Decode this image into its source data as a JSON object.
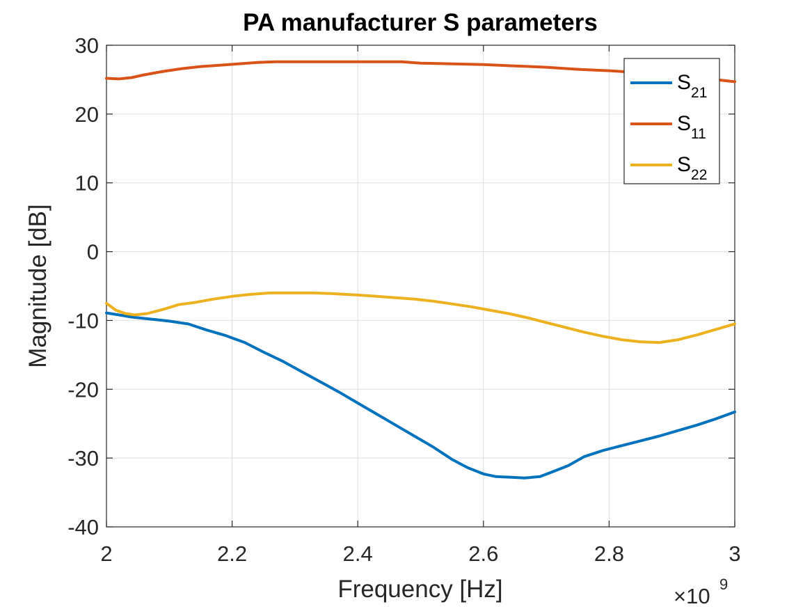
{
  "chart_data": {
    "type": "line",
    "title": "PA manufacturer S parameters",
    "xlabel": "Frequency [Hz]",
    "ylabel": "Magnitude [dB]",
    "xlim": [
      2000000000.0,
      3000000000.0
    ],
    "ylim": [
      -40,
      30
    ],
    "x_ticks": [
      2000000000.0,
      2200000000.0,
      2400000000.0,
      2600000000.0,
      2800000000.0,
      3000000000.0
    ],
    "x_tick_labels": [
      "2",
      "2.2",
      "2.4",
      "2.6",
      "2.8",
      "3"
    ],
    "y_ticks": [
      30,
      20,
      10,
      0,
      -10,
      -20,
      -30,
      -40
    ],
    "y_tick_labels": [
      "30",
      "20",
      "10",
      "0",
      "-10",
      "-20",
      "-30",
      "-40"
    ],
    "x_exponent": {
      "base": "×10",
      "power": "9"
    },
    "grid": true,
    "legend_position": "top-right",
    "series": [
      {
        "name": "S21",
        "legend_main": "S",
        "legend_sub": "21",
        "color": "#0072BD",
        "points": [
          [
            2000000000.0,
            -8.9
          ],
          [
            2020000000.0,
            -9.2
          ],
          [
            2040000000.0,
            -9.5
          ],
          [
            2060000000.0,
            -9.7
          ],
          [
            2080000000.0,
            -9.9
          ],
          [
            2100000000.0,
            -10.1
          ],
          [
            2130000000.0,
            -10.5
          ],
          [
            2160000000.0,
            -11.4
          ],
          [
            2190000000.0,
            -12.2
          ],
          [
            2220000000.0,
            -13.2
          ],
          [
            2250000000.0,
            -14.6
          ],
          [
            2280000000.0,
            -15.9
          ],
          [
            2310000000.0,
            -17.4
          ],
          [
            2340000000.0,
            -18.9
          ],
          [
            2370000000.0,
            -20.4
          ],
          [
            2400000000.0,
            -22.0
          ],
          [
            2430000000.0,
            -23.6
          ],
          [
            2460000000.0,
            -25.2
          ],
          [
            2490000000.0,
            -26.8
          ],
          [
            2520000000.0,
            -28.4
          ],
          [
            2550000000.0,
            -30.2
          ],
          [
            2575000000.0,
            -31.4
          ],
          [
            2600000000.0,
            -32.3
          ],
          [
            2620000000.0,
            -32.7
          ],
          [
            2645000000.0,
            -32.8
          ],
          [
            2665000000.0,
            -32.9
          ],
          [
            2690000000.0,
            -32.7
          ],
          [
            2710000000.0,
            -32.0
          ],
          [
            2735000000.0,
            -31.1
          ],
          [
            2760000000.0,
            -29.8
          ],
          [
            2790000000.0,
            -28.9
          ],
          [
            2820000000.0,
            -28.2
          ],
          [
            2850000000.0,
            -27.5
          ],
          [
            2880000000.0,
            -26.8
          ],
          [
            2910000000.0,
            -26.0
          ],
          [
            2940000000.0,
            -25.2
          ],
          [
            2970000000.0,
            -24.3
          ],
          [
            3000000000.0,
            -23.3
          ]
        ]
      },
      {
        "name": "S11",
        "legend_main": "S",
        "legend_sub": "11",
        "color": "#D95319",
        "points": [
          [
            2000000000.0,
            25.2
          ],
          [
            2020000000.0,
            25.1
          ],
          [
            2040000000.0,
            25.3
          ],
          [
            2060000000.0,
            25.7
          ],
          [
            2090000000.0,
            26.2
          ],
          [
            2120000000.0,
            26.6
          ],
          [
            2150000000.0,
            26.9
          ],
          [
            2180000000.0,
            27.1
          ],
          [
            2210000000.0,
            27.3
          ],
          [
            2240000000.0,
            27.5
          ],
          [
            2270000000.0,
            27.6
          ],
          [
            2300000000.0,
            27.6
          ],
          [
            2350000000.0,
            27.6
          ],
          [
            2400000000.0,
            27.6
          ],
          [
            2470000000.0,
            27.6
          ],
          [
            2500000000.0,
            27.4
          ],
          [
            2550000000.0,
            27.3
          ],
          [
            2600000000.0,
            27.2
          ],
          [
            2650000000.0,
            27.0
          ],
          [
            2700000000.0,
            26.8
          ],
          [
            2750000000.0,
            26.5
          ],
          [
            2800000000.0,
            26.3
          ],
          [
            2850000000.0,
            26.0
          ],
          [
            2900000000.0,
            25.6
          ],
          [
            2950000000.0,
            25.2
          ],
          [
            3000000000.0,
            24.7
          ]
        ]
      },
      {
        "name": "S22",
        "legend_main": "S",
        "legend_sub": "22",
        "color": "#EDB120",
        "points": [
          [
            2000000000.0,
            -7.5
          ],
          [
            2015000000.0,
            -8.5
          ],
          [
            2030000000.0,
            -9.0
          ],
          [
            2045000000.0,
            -9.2
          ],
          [
            2065000000.0,
            -9.0
          ],
          [
            2090000000.0,
            -8.4
          ],
          [
            2115000000.0,
            -7.7
          ],
          [
            2140000000.0,
            -7.4
          ],
          [
            2170000000.0,
            -6.9
          ],
          [
            2200000000.0,
            -6.5
          ],
          [
            2230000000.0,
            -6.2
          ],
          [
            2260000000.0,
            -6.0
          ],
          [
            2300000000.0,
            -6.0
          ],
          [
            2330000000.0,
            -6.0
          ],
          [
            2360000000.0,
            -6.1
          ],
          [
            2400000000.0,
            -6.3
          ],
          [
            2430000000.0,
            -6.5
          ],
          [
            2460000000.0,
            -6.7
          ],
          [
            2490000000.0,
            -6.9
          ],
          [
            2520000000.0,
            -7.2
          ],
          [
            2550000000.0,
            -7.6
          ],
          [
            2580000000.0,
            -8.0
          ],
          [
            2610000000.0,
            -8.5
          ],
          [
            2640000000.0,
            -9.0
          ],
          [
            2670000000.0,
            -9.6
          ],
          [
            2700000000.0,
            -10.3
          ],
          [
            2730000000.0,
            -11.0
          ],
          [
            2760000000.0,
            -11.7
          ],
          [
            2790000000.0,
            -12.3
          ],
          [
            2820000000.0,
            -12.8
          ],
          [
            2850000000.0,
            -13.1
          ],
          [
            2880000000.0,
            -13.2
          ],
          [
            2910000000.0,
            -12.8
          ],
          [
            2940000000.0,
            -12.1
          ],
          [
            2970000000.0,
            -11.3
          ],
          [
            3000000000.0,
            -10.5
          ]
        ]
      }
    ]
  }
}
